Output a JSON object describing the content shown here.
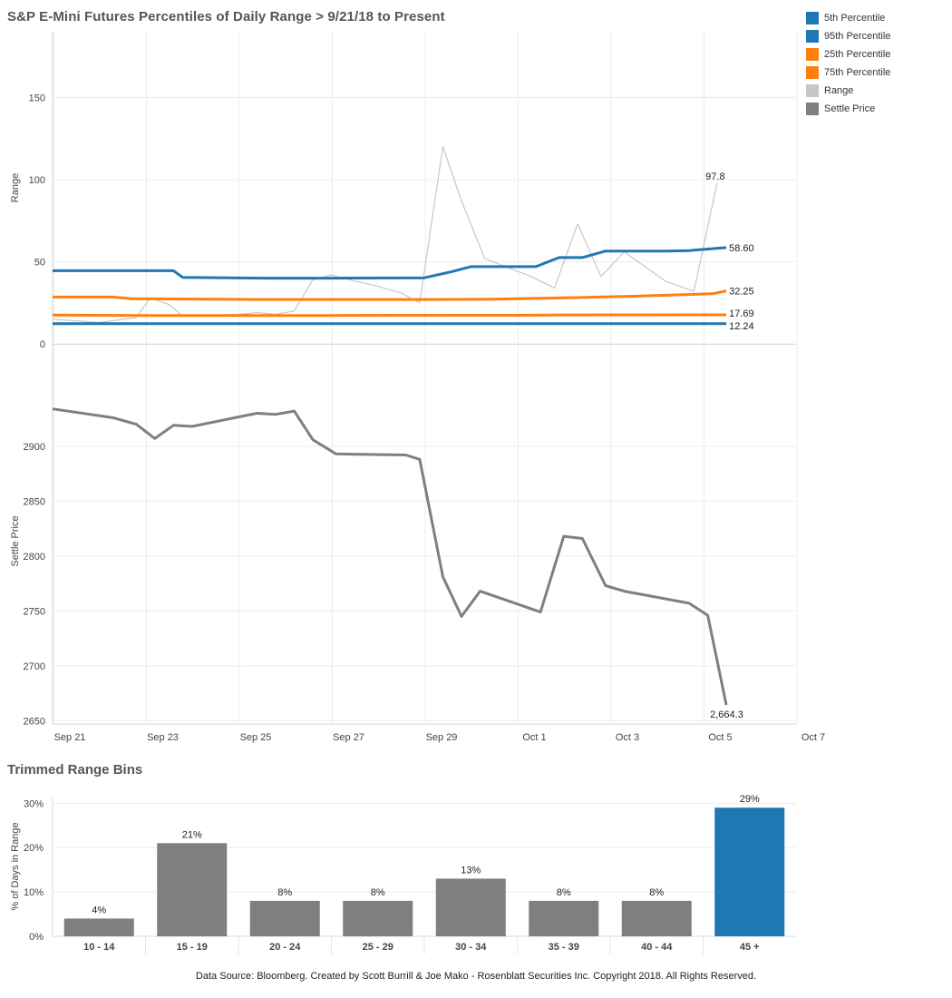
{
  "title": "S&P E-Mini Futures Percentiles of Daily Range > 9/21/18 to Present",
  "bins_title": "Trimmed Range Bins",
  "footer": "Data Source: Bloomberg. Created by Scott Burrill & Joe Mako - Rosenblatt Securities Inc. Copyright 2018. All Rights Reserved.",
  "legend": [
    {
      "label": "5th Percentile",
      "color": "#1f77b4"
    },
    {
      "label": "95th Percentile",
      "color": "#1f77b4"
    },
    {
      "label": "25th Percentile",
      "color": "#ff7f0e"
    },
    {
      "label": "75th Percentile",
      "color": "#ff7f0e"
    },
    {
      "label": "Range",
      "color": "#c7c7c7"
    },
    {
      "label": "Settle Price",
      "color": "#7f7f7f"
    }
  ],
  "chart_data": [
    {
      "type": "line",
      "ylabel": "Range",
      "ylim": [
        0,
        190
      ],
      "yticks": [
        0,
        50,
        100,
        150
      ],
      "xlim": [
        "2018-09-21",
        "2018-10-07"
      ],
      "xticks": [
        "Sep 21",
        "Sep 23",
        "Sep 25",
        "Sep 27",
        "Sep 29",
        "Oct 1",
        "Oct 3",
        "Oct 5",
        "Oct 7"
      ],
      "x": [
        "2018-09-21",
        "2018-09-22",
        "2018-09-22.8",
        "2018-09-23.1",
        "2018-09-23.5",
        "2018-09-23.8",
        "2018-09-24.2",
        "2018-09-25",
        "2018-09-25.4",
        "2018-09-25.8",
        "2018-09-26.2",
        "2018-09-26.6",
        "2018-09-27",
        "2018-09-27.4",
        "2018-09-28",
        "2018-09-28.5",
        "2018-09-28.9",
        "2018-09-29.4",
        "2018-09-29.8",
        "2018-09-30.3",
        "2018-10-01.3",
        "2018-10-01.8",
        "2018-10-02.3",
        "2018-10-02.8",
        "2018-10-03.3",
        "2018-10-04.2",
        "2018-10-04.8",
        "2018-10-05.3"
      ],
      "series": [
        {
          "name": "Range",
          "values": [
            15,
            13,
            16,
            28,
            24,
            17,
            17,
            18,
            19,
            18,
            20,
            39,
            42,
            39,
            35,
            31,
            25,
            120,
            87,
            52,
            41,
            34,
            73,
            41,
            56,
            38,
            32,
            97.8
          ]
        }
      ],
      "percentiles": [
        {
          "name": "95th Percentile",
          "x": [
            "2018-09-21",
            "2018-09-23.6",
            "2018-09-23.8",
            "2018-09-25.6",
            "2018-09-27.1",
            "2018-09-29.0",
            "2018-09-29.6",
            "2018-09-30.0",
            "2018-10-01.2",
            "2018-10-01.4",
            "2018-10-01.9",
            "2018-10-02.4",
            "2018-10-02.9",
            "2018-10-04.2",
            "2018-10-04.7",
            "2018-10-05.5"
          ],
          "values": [
            44.5,
            44.5,
            40.5,
            40,
            40,
            40.2,
            44,
            47,
            47,
            47,
            52.5,
            52.5,
            56.5,
            56.5,
            56.8,
            58.6
          ]
        },
        {
          "name": "25th Percentile",
          "x": [
            "2018-09-21",
            "2018-09-22.3",
            "2018-09-22.7",
            "2018-09-25.4",
            "2018-09-29.0",
            "2018-09-30.5",
            "2018-10-02.0",
            "2018-10-03.5",
            "2018-10-04.6",
            "2018-10-05.2",
            "2018-10-05.5"
          ],
          "values": [
            28.5,
            28.5,
            27.5,
            27,
            27,
            27.2,
            28,
            29,
            30,
            30.5,
            32.25
          ]
        },
        {
          "name": "75th Percentile",
          "x": [
            "2018-09-21",
            "2018-09-23.0",
            "2018-09-27.0",
            "2018-10-01.0",
            "2018-10-02.0",
            "2018-10-05.5"
          ],
          "values": [
            17.5,
            17.3,
            17.3,
            17.4,
            17.6,
            17.69
          ]
        },
        {
          "name": "5th Percentile",
          "x": [
            "2018-09-21",
            "2018-10-05.5"
          ],
          "values": [
            12.24,
            12.24
          ]
        }
      ],
      "labels": [
        "97.8",
        "58.60",
        "32.25",
        "17.69",
        "12.24"
      ]
    },
    {
      "type": "line",
      "ylabel": "Settle Price",
      "ylim": [
        2647,
        2980
      ],
      "yticks": [
        2650,
        2700,
        2750,
        2800,
        2850,
        2900
      ],
      "xlim": [
        "2018-09-21",
        "2018-10-07"
      ],
      "series": [
        {
          "name": "Settle Price",
          "x": [
            "2018-09-21",
            "2018-09-22.3",
            "2018-09-22.8",
            "2018-09-23.2",
            "2018-09-23.6",
            "2018-09-24.0",
            "2018-09-25.4",
            "2018-09-25.8",
            "2018-09-26.2",
            "2018-09-26.6",
            "2018-09-27.1",
            "2018-09-28.6",
            "2018-09-28.9",
            "2018-09-29.4",
            "2018-09-29.8",
            "2018-09-30.2",
            "2018-10-01.5",
            "2018-10-02.0",
            "2018-10-02.4",
            "2018-10-02.9",
            "2018-10-03.3",
            "2018-10-04.7",
            "2018-10-05.1",
            "2018-10-05.5"
          ],
          "values": [
            2934,
            2926,
            2920,
            2907,
            2919,
            2918,
            2930,
            2929,
            2932,
            2906,
            2893,
            2892,
            2888,
            2781,
            2745,
            2768,
            2749,
            2818,
            2816,
            2773,
            2768,
            2757,
            2746,
            2664.3
          ]
        }
      ],
      "labels": [
        "2,664.3"
      ]
    },
    {
      "type": "bar",
      "ylabel": "% of Days in Range",
      "ylim": [
        0,
        31.5
      ],
      "yticks": [
        "0%",
        "10%",
        "20%",
        "30%"
      ],
      "categories": [
        "10 - 14",
        "15 - 19",
        "20 - 24",
        "25 - 29",
        "30 - 34",
        "35 - 39",
        "40 - 44",
        "45 +"
      ],
      "values": [
        4,
        21,
        8,
        8,
        13,
        8,
        8,
        29
      ],
      "value_labels": [
        "4%",
        "21%",
        "8%",
        "8%",
        "13%",
        "8%",
        "8%",
        "29%"
      ],
      "colors": [
        "#7f7f7f",
        "#7f7f7f",
        "#7f7f7f",
        "#7f7f7f",
        "#7f7f7f",
        "#7f7f7f",
        "#7f7f7f",
        "#1f77b4"
      ]
    }
  ]
}
